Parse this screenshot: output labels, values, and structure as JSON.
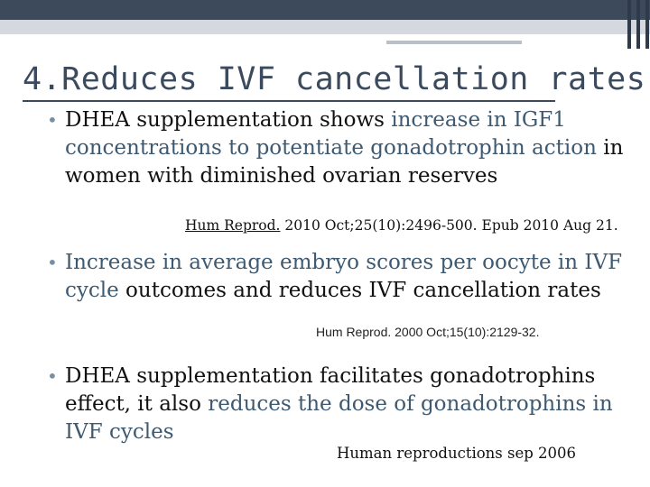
{
  "slide": {
    "title": "4.Reduces IVF cancellation rates",
    "bullets": [
      {
        "segments": [
          {
            "text": "DHEA supplementation shows ",
            "highlight": false
          },
          {
            "text": "increase in IGF1 concentrations to potentiate gonadotrophin action",
            "highlight": true
          },
          {
            "text": " in women with diminished ovarian reserves",
            "highlight": false
          }
        ],
        "citation": {
          "journal": "Hum Reprod.",
          "rest": " 2010 Oct;25(10):2496-500. Epub 2010 Aug 21."
        }
      },
      {
        "segments": [
          {
            "text": "Increase in average embryo scores per oocyte in IVF cycle",
            "highlight": true
          },
          {
            "text": " outcomes and reduces IVF cancellation rates",
            "highlight": false
          }
        ],
        "citation": {
          "text": "Hum Reprod. 2000 Oct;15(10):2129-32."
        }
      },
      {
        "segments": [
          {
            "text": "DHEA supplementation facilitates gonadotrophins effect, it also ",
            "highlight": false
          },
          {
            "text": "reduces the dose of gonadotrophins in IVF cycles",
            "highlight": true
          }
        ],
        "citation": {
          "text": "Human reproductions sep 2006"
        }
      }
    ]
  },
  "colors": {
    "title": "#3b4a5d",
    "highlight": "#3d5a72",
    "bullet_marker": "#7b8fa3",
    "header_bar": "#3d4a5c"
  }
}
